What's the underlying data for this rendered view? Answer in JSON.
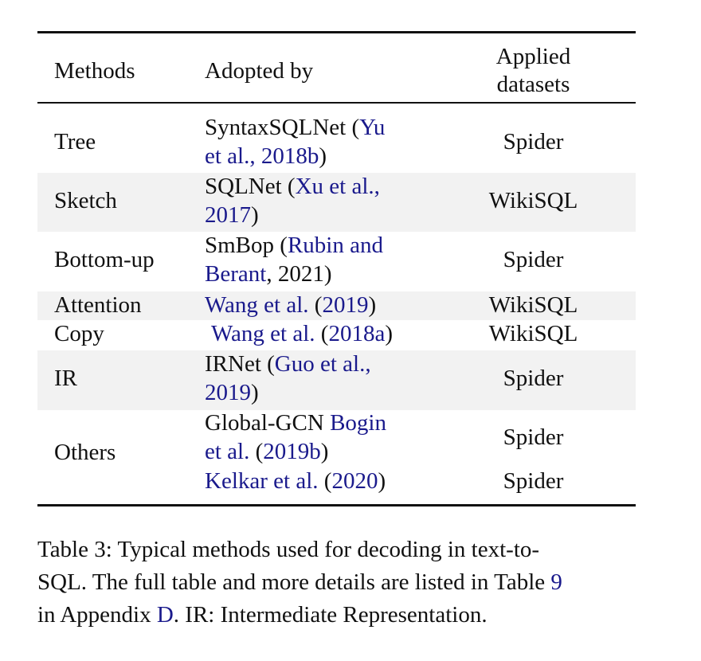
{
  "table": {
    "headers": {
      "methods": "Methods",
      "adopted_by": "Adopted by",
      "applied_line1": "Applied",
      "applied_line2": "datasets"
    },
    "rows": [
      {
        "method": "Tree",
        "adopted_line1_plain": "SyntaxSQLNet (",
        "adopted_line1_cite": "Yu",
        "adopted_line2_cite": "et al., 2018b",
        "adopted_line2_plain": ")",
        "dataset": "Spider",
        "shaded": false
      },
      {
        "method": "Sketch",
        "adopted_line1_plain": "SQLNet (",
        "adopted_line1_cite": "Xu et al.,",
        "adopted_line2_cite": "2017",
        "adopted_line2_plain": ")",
        "dataset": "WikiSQL",
        "shaded": true
      },
      {
        "method": "Bottom-up",
        "adopted_line1_plain": "SmBop (",
        "adopted_line1_cite": "Rubin and",
        "adopted_line2_cite": "Berant",
        "adopted_line2_plain": ", 2021)",
        "dataset": "Spider",
        "shaded": false
      },
      {
        "method": "Attention",
        "adopted_cite": "Wang et al.",
        "adopted_plain_mid": " (",
        "adopted_cite2": "2019",
        "adopted_plain_end": ")",
        "dataset": "WikiSQL",
        "shaded": true
      },
      {
        "method": "Copy",
        "adopted_cite": "Wang et al.",
        "adopted_plain_mid": " (",
        "adopted_cite2": "2018a",
        "adopted_plain_end": ")",
        "dataset": "WikiSQL",
        "shaded": false
      },
      {
        "method": "IR",
        "adopted_line1_plain": "IRNet (",
        "adopted_line1_cite": "Guo et al.,",
        "adopted_line2_cite": "2019",
        "adopted_line2_plain": ")",
        "dataset": "Spider",
        "shaded": true
      },
      {
        "method": "Others",
        "adopted_line1_plain": "Global-GCN ",
        "adopted_line1_cite": "Bogin",
        "adopted_line2_cite": "et al.",
        "adopted_line2_plain": " (",
        "adopted_line2_cite2": "2019b",
        "adopted_line2_plain2": ")",
        "dataset": "Spider",
        "extra_cite": "Kelkar et al.",
        "extra_plain_mid": " (",
        "extra_cite2": "2020",
        "extra_plain_end": ")",
        "extra_dataset": "Spider",
        "shaded": false
      }
    ]
  },
  "caption": {
    "line1": "Table 3: Typical methods used for decoding in text-to-",
    "line2_plain": "SQL. The full table and more details are listed in Table ",
    "line2_ref": "9",
    "line3_plain_a": "in Appendix ",
    "line3_ref": "D",
    "line3_plain_b": ". IR: Intermediate Representation."
  },
  "colors": {
    "citation": "#1a1a8c",
    "row_shade": "#f2f2f2",
    "text": "#111111"
  }
}
